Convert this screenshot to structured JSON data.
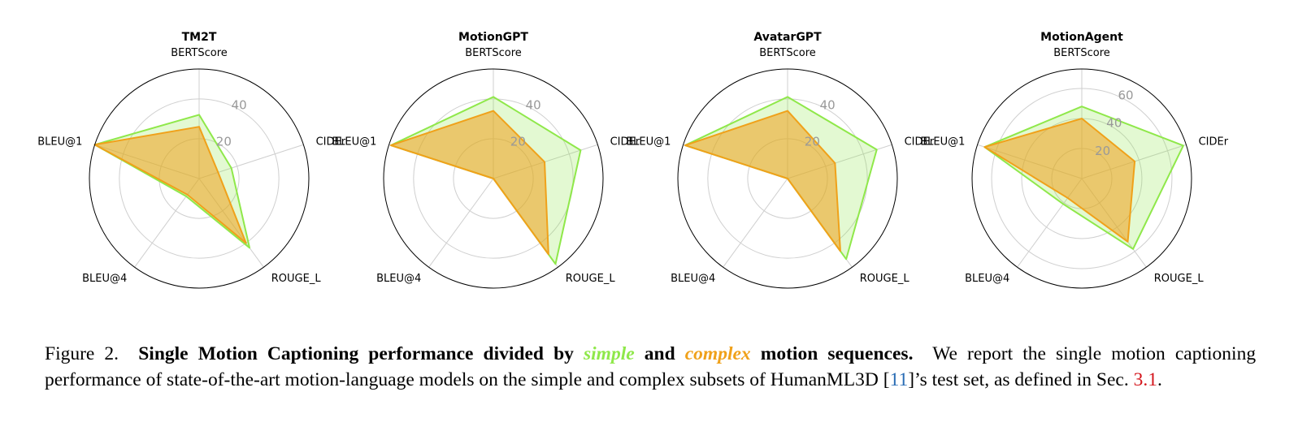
{
  "colors": {
    "simple": "#8fe84a",
    "complex": "#f0a11a",
    "cite": "#2a6db5",
    "secref": "#d4161c"
  },
  "chart_data": [
    {
      "type": "radar",
      "title": "TM2T",
      "axes": [
        "BERTScore",
        "CIDEr",
        "ROUGE_L",
        "BLEU@4",
        "BLEU@1"
      ],
      "rticks": [
        20,
        40
      ],
      "rmax": 55,
      "series": [
        {
          "name": "simple",
          "values": [
            32,
            17,
            43,
            11,
            55
          ]
        },
        {
          "name": "complex",
          "values": [
            26,
            10,
            40,
            10,
            55
          ]
        }
      ]
    },
    {
      "type": "radar",
      "title": "MotionGPT",
      "axes": [
        "BERTScore",
        "CIDEr",
        "ROUGE_L",
        "BLEU@4",
        "BLEU@1"
      ],
      "rticks": [
        20,
        40
      ],
      "rmax": 55,
      "series": [
        {
          "name": "simple",
          "values": [
            41,
            46,
            53,
            0,
            54
          ]
        },
        {
          "name": "complex",
          "values": [
            34,
            27,
            47,
            0,
            54
          ]
        }
      ]
    },
    {
      "type": "radar",
      "title": "AvatarGPT",
      "axes": [
        "BERTScore",
        "CIDEr",
        "ROUGE_L",
        "BLEU@4",
        "BLEU@1"
      ],
      "rticks": [
        20,
        40
      ],
      "rmax": 55,
      "series": [
        {
          "name": "simple",
          "values": [
            41,
            47,
            50,
            0,
            54
          ]
        },
        {
          "name": "complex",
          "values": [
            34,
            25,
            45,
            0,
            54
          ]
        }
      ]
    },
    {
      "type": "radar",
      "title": "MotionAgent",
      "axes": [
        "BERTScore",
        "CIDEr",
        "ROUGE_L",
        "BLEU@4",
        "BLEU@1"
      ],
      "rticks": [
        20,
        40,
        60
      ],
      "rmax": 73,
      "series": [
        {
          "name": "simple",
          "values": [
            48,
            71,
            58,
            21,
            68
          ]
        },
        {
          "name": "complex",
          "values": [
            40,
            37,
            52,
            16,
            68
          ]
        }
      ]
    }
  ],
  "caption": {
    "figure_label": "Figure 2.",
    "bold_a": "Single Motion Captioning performance divided by",
    "simple_word": "simple",
    "bold_b": "and",
    "complex_word": "complex",
    "bold_c": "motion sequences.",
    "text_a": "We report the single motion captioning performance of state-of-the-art motion-language models on the simple and complex subsets of HumanML3D [",
    "cite": "11",
    "text_b": "]’s test set, as defined in Sec.",
    "secref": "3.1",
    "text_c": "."
  }
}
